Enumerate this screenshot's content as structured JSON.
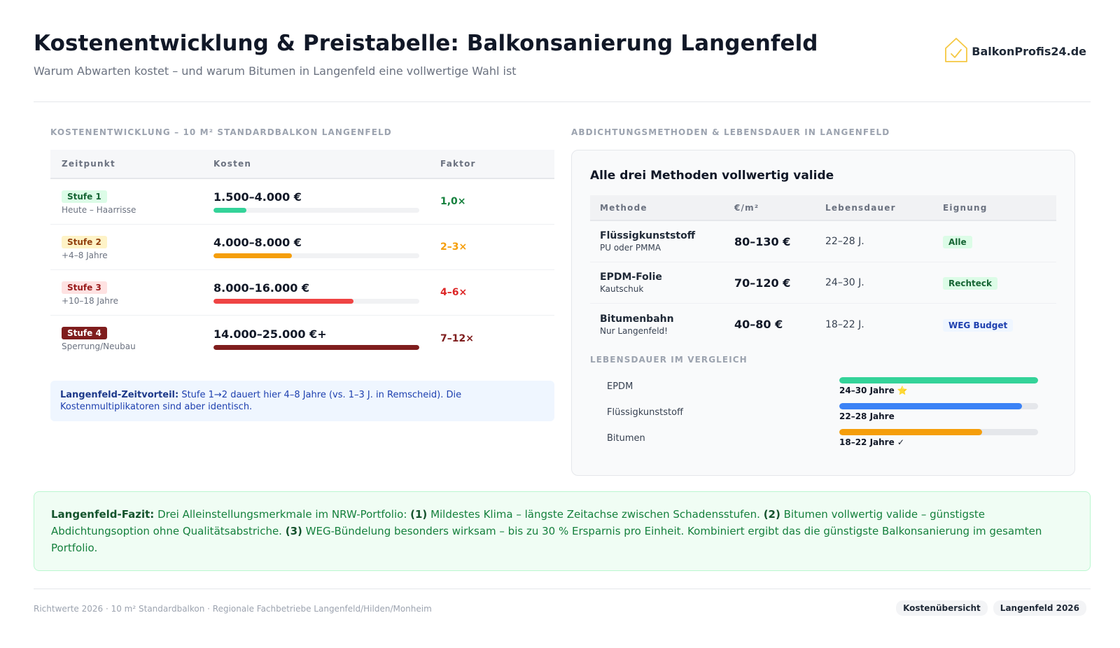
{
  "header": {
    "title": "Kostenentwicklung & Preistabelle: Balkonsanierung Langenfeld",
    "subtitle": "Warum Abwarten kostet – und warum Bitumen in Langenfeld eine vollwertige Wahl ist",
    "logo_text": "BalkonProfis24.de",
    "logo_icon": "house-check-icon",
    "logo_color": "#f5c842"
  },
  "cost_section": {
    "label": "Kostenentwicklung – 10 m² Standardbalkon Langenfeld",
    "columns": [
      "Zeitpunkt",
      "Kosten",
      "Faktor"
    ],
    "rows": [
      {
        "stage": "Stufe 1",
        "when": "Heute – Haarrisse",
        "cost": "1.500–4.000 €",
        "factor": "1,0×",
        "fill_fraction": 0.16,
        "bar_color": "#34d399",
        "badge_bg": "#dcfce7",
        "badge_color": "#166534",
        "factor_color": "#15803d"
      },
      {
        "stage": "Stufe 2",
        "when": "+4–8 Jahre",
        "cost": "4.000–8.000 €",
        "factor": "2–3×",
        "fill_fraction": 0.38,
        "bar_color": "#f59e0b",
        "badge_bg": "#fef3c7",
        "badge_color": "#92400e",
        "factor_color": "#f59e0b"
      },
      {
        "stage": "Stufe 3",
        "when": "+10–18 Jahre",
        "cost": "8.000–16.000 €",
        "factor": "4–6×",
        "fill_fraction": 0.68,
        "bar_color": "#ef4444",
        "badge_bg": "#fee2e2",
        "badge_color": "#991b1b",
        "factor_color": "#dc2626"
      },
      {
        "stage": "Stufe 4",
        "when": "Sperrung/Neubau",
        "cost": "14.000–25.000 €+",
        "factor": "7–12×",
        "fill_fraction": 1.0,
        "bar_color": "#7f1d1d",
        "badge_bg": "#7f1d1d",
        "badge_color": "#ffffff",
        "factor_color": "#7f1d1d"
      }
    ],
    "note_bold": "Langenfeld-Zeitvorteil:",
    "note_text": " Stufe 1→2 dauert hier 4–8 Jahre (vs. 1–3 J. in Remscheid). Die Kostenmultiplikatoren sind aber identisch."
  },
  "methods_section": {
    "label": "Abdichtungsmethoden & Lebensdauer in Langenfeld",
    "panel_title": "Alle drei Methoden vollwertig valide",
    "columns": [
      "Methode",
      "€/m²",
      "Lebensdauer",
      "Eignung"
    ],
    "rows": [
      {
        "name": "Flüssigkunststoff",
        "sub": "PU oder PMMA",
        "price": "80–130 €",
        "life": "22–28 J.",
        "tag": "Alle",
        "tag_bg": "#dcfce7",
        "tag_color": "#166534"
      },
      {
        "name": "EPDM-Folie",
        "sub": "Kautschuk",
        "price": "70–120 €",
        "life": "24–30 J.",
        "tag": "Rechteck",
        "tag_bg": "#dcfce7",
        "tag_color": "#166534"
      },
      {
        "name": "Bitumenbahn",
        "sub": "Nur Langenfeld!",
        "price": "40–80 €",
        "life": "18–22 J.",
        "tag": "WEG Budget",
        "tag_bg": "#eff6ff",
        "tag_color": "#1e40af"
      }
    ],
    "compare_label": "Lebensdauer im Vergleich",
    "compare": [
      {
        "name": "EPDM",
        "value": "24–30 Jahre ⭐",
        "fill_fraction": 1.0,
        "color": "#34d399"
      },
      {
        "name": "Flüssigkunststoff",
        "value": "22–28 Jahre",
        "fill_fraction": 0.92,
        "color": "#3b82f6"
      },
      {
        "name": "Bitumen",
        "value": "18–22 Jahre ✓",
        "fill_fraction": 0.72,
        "color": "#f59e0b"
      }
    ]
  },
  "fazit": {
    "lead": "Langenfeld-Fazit:",
    "t1": " Drei Alleinstellungsmerkmale im NRW-Portfolio: ",
    "n1": "(1)",
    "t2": " Mildestes Klima – längste Zeitachse zwischen Schadensstufen. ",
    "n2": "(2)",
    "t3": " Bitumen vollwertig valide – günstigste Abdichtungsoption ohne Qualitätsabstriche. ",
    "n3": "(3)",
    "t4": " WEG-Bündelung besonders wirksam – bis zu 30 % Ersparnis pro Einheit. Kombiniert ergibt das die günstigste Balkonsanierung im gesamten Portfolio."
  },
  "footer": {
    "text": "Richtwerte 2026 · 10 m² Standardbalkon · Regionale Fachbetriebe Langenfeld/Hilden/Monheim",
    "tags": [
      "Kostenübersicht",
      "Langenfeld 2026"
    ]
  }
}
